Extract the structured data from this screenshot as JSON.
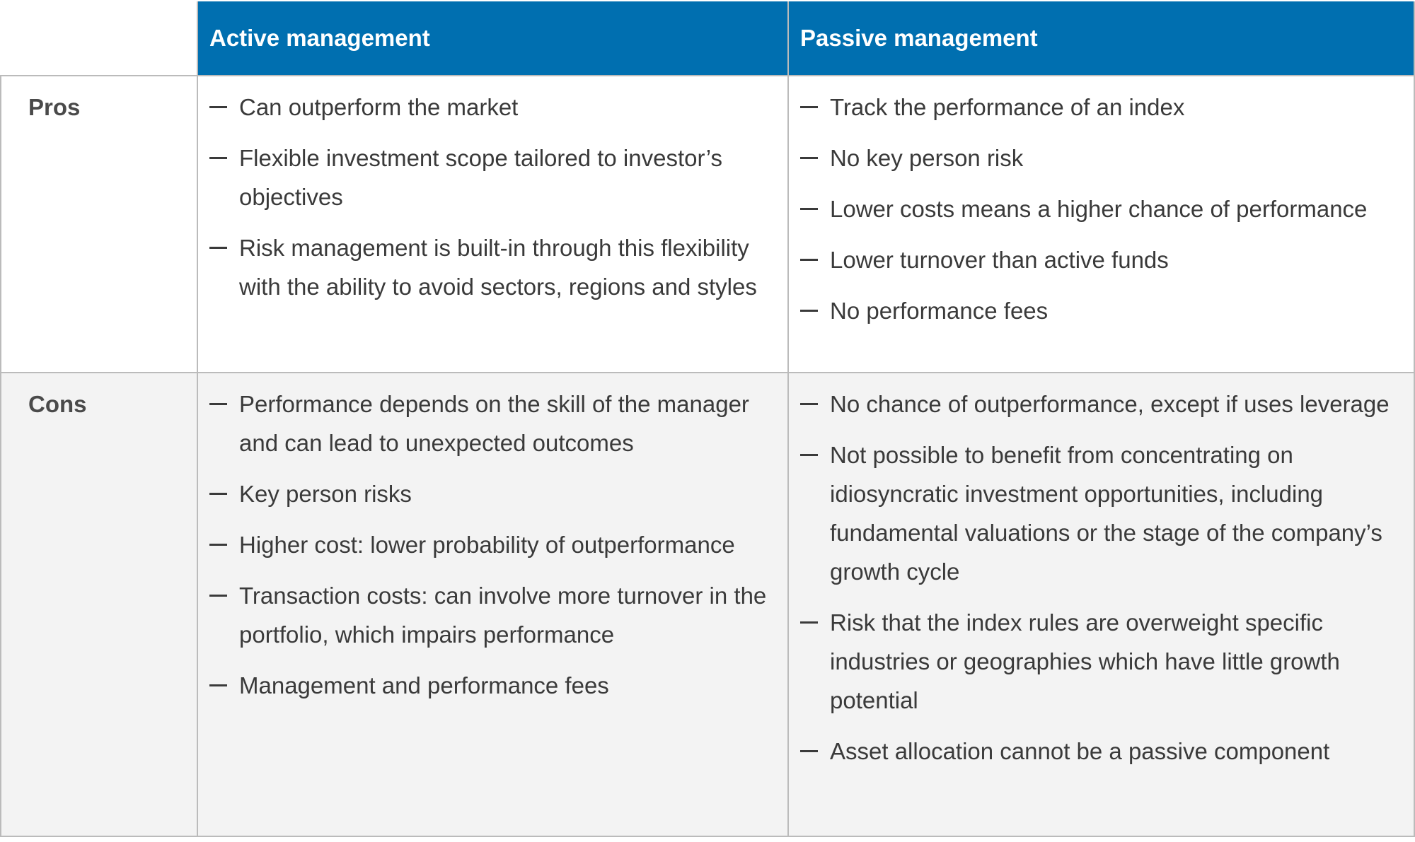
{
  "header": {
    "columns": [
      "Active management",
      "Passive management"
    ]
  },
  "rows": [
    {
      "label": "Pros",
      "cells": [
        [
          "Can outperform the market",
          "Flexible investment scope tailored to investor’s objectives",
          "Risk management is built-in through this flexibility with the ability to avoid sectors, regions and styles"
        ],
        [
          "Track the performance of an index",
          "No key person risk",
          "Lower costs means a higher chance of performance",
          "Lower turnover than active funds",
          "No performance fees"
        ]
      ]
    },
    {
      "label": "Cons",
      "cells": [
        [
          "Performance depends on the skill of the manager and can lead to unexpected outcomes",
          "Key person risks",
          "Higher cost: lower probability of outperformance",
          "Transaction costs: can involve more turnover in the portfolio, which impairs performance",
          "Management and performance fees"
        ],
        [
          "No chance of outperformance, except if uses leverage",
          "Not possible to benefit from concentrating on idiosyncratic investment opportunities, including fundamental valuations or the stage of the company’s growth cycle",
          "Risk that the index rules are overweight specific industries or geographies which have little growth potential",
          "Asset allocation cannot be a passive component"
        ]
      ]
    }
  ]
}
